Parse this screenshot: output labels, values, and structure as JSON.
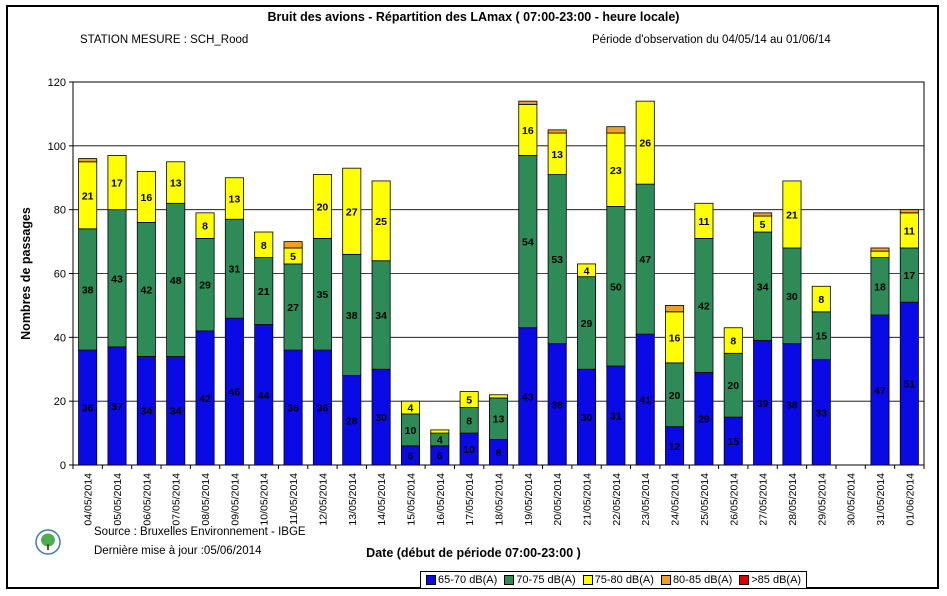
{
  "title": "Bruit des avions - Répartition des LAmax ( 07:00-23:00 - heure locale)",
  "station": "STATION MESURE : SCH_Rood",
  "period": "Période d'observation du 04/05/14 au 01/06/14",
  "source": "Source : Bruxelles Environnement - IBGE",
  "update": "Dernière mise à jour :05/06/2014",
  "logo_icon": "tree-leaf-logo",
  "chart_data": {
    "type": "bar",
    "stacked": true,
    "xlabel": "Date (début de période 07:00-23:00  )",
    "ylabel": "Nombres de passages",
    "ylim": [
      0,
      120
    ],
    "yticks": [
      0,
      20,
      40,
      60,
      80,
      100,
      120
    ],
    "grid": true,
    "legend_position": "bottom",
    "categories": [
      "04/05/2014",
      "05/05/2014",
      "06/05/2014",
      "07/05/2014",
      "08/05/2014",
      "09/05/2014",
      "10/05/2014",
      "11/05/2014",
      "12/05/2014",
      "13/05/2014",
      "14/05/2014",
      "15/05/2014",
      "16/05/2014",
      "17/05/2014",
      "18/05/2014",
      "19/05/2014",
      "20/05/2014",
      "21/05/2014",
      "22/05/2014",
      "23/05/2014",
      "24/05/2014",
      "25/05/2014",
      "26/05/2014",
      "27/05/2014",
      "28/05/2014",
      "29/05/2014",
      "30/05/2014",
      "31/05/2014",
      "01/06/2014"
    ],
    "series": [
      {
        "name": "65-70 dB(A)",
        "color": "#0a0ae6",
        "label_color": "#5a5aff",
        "values": [
          36,
          37,
          34,
          34,
          42,
          46,
          44,
          36,
          36,
          28,
          30,
          6,
          6,
          10,
          8,
          43,
          38,
          30,
          31,
          41,
          12,
          29,
          15,
          39,
          38,
          33,
          0,
          47,
          51
        ]
      },
      {
        "name": "70-75 dB(A)",
        "color": "#2e8b57",
        "label_color": "#000000",
        "values": [
          38,
          43,
          42,
          48,
          29,
          31,
          21,
          27,
          35,
          38,
          34,
          10,
          4,
          8,
          13,
          54,
          53,
          29,
          50,
          47,
          20,
          42,
          20,
          34,
          30,
          15,
          0,
          18,
          17
        ]
      },
      {
        "name": "75-80 dB(A)",
        "color": "#ffff00",
        "label_color": "#000000",
        "values": [
          21,
          17,
          16,
          13,
          8,
          13,
          8,
          5,
          20,
          27,
          25,
          4,
          1,
          5,
          1,
          16,
          13,
          4,
          23,
          26,
          16,
          11,
          8,
          5,
          21,
          8,
          0,
          2,
          11
        ]
      },
      {
        "name": "80-85 dB(A)",
        "color": "#f0a020",
        "label_color": "#000000",
        "values": [
          1,
          0,
          0,
          0,
          0,
          0,
          0,
          2,
          0,
          0,
          0,
          0,
          0,
          0,
          0,
          1,
          1,
          0,
          2,
          0,
          2,
          0,
          0,
          1,
          0,
          0,
          0,
          1,
          1
        ]
      },
      {
        "name": ">85 dB(A)",
        "color": "#e00000",
        "label_color": "#000000",
        "values": [
          0,
          0,
          0,
          0,
          0,
          0,
          0,
          0,
          0,
          0,
          0,
          0,
          0,
          0,
          0,
          0,
          0,
          0,
          0,
          0,
          0,
          0,
          0,
          0,
          0,
          0,
          0,
          0,
          0
        ]
      }
    ],
    "label_min": 3
  }
}
